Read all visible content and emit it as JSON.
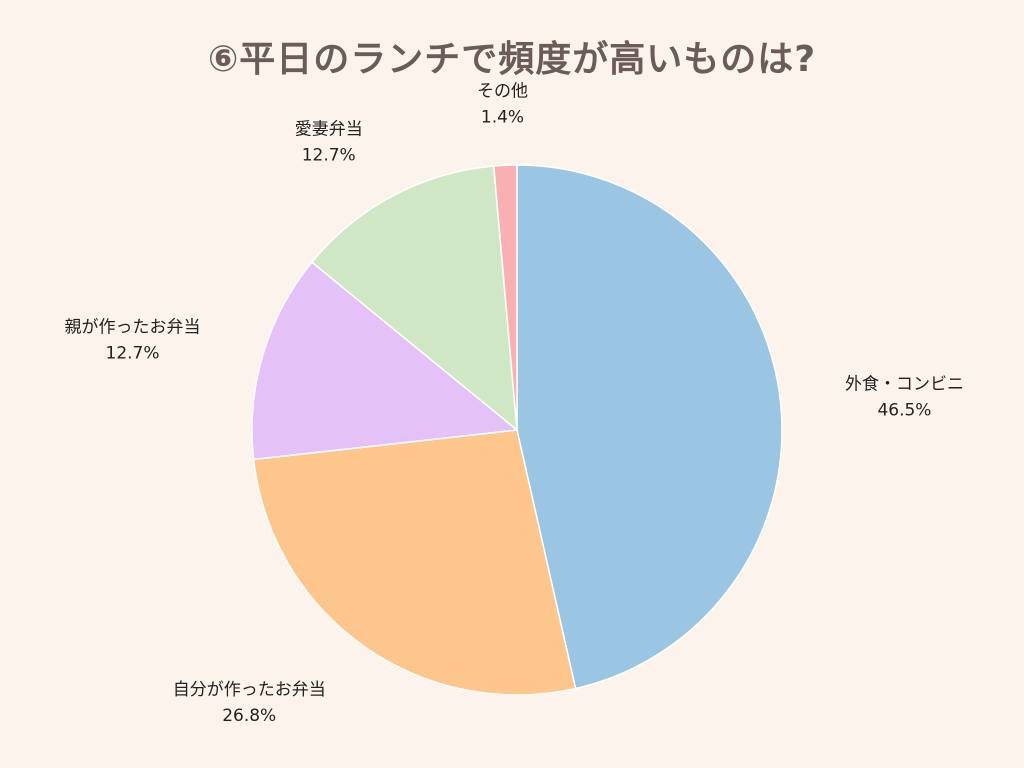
{
  "chart_data": {
    "type": "pie",
    "title": "⑥平日のランチで頻度が高いものは?",
    "slices": [
      {
        "label": "外食・コンビニ",
        "value": 46.5,
        "display": "46.5%",
        "color": "#9ac6e3"
      },
      {
        "label": "自分が作ったお弁当",
        "value": 26.8,
        "display": "26.8%",
        "color": "#fdc68c"
      },
      {
        "label": "親が作ったお弁当",
        "value": 12.7,
        "display": "12.7%",
        "color": "#e4c1f7"
      },
      {
        "label": "愛妻弁当",
        "value": 12.7,
        "display": "12.7%",
        "color": "#cfe7c4"
      },
      {
        "label": "その他",
        "value": 1.4,
        "display": "1.4%",
        "color": "#f9b0b3"
      }
    ],
    "start": "top",
    "direction": "clockwise",
    "legend": "none"
  }
}
